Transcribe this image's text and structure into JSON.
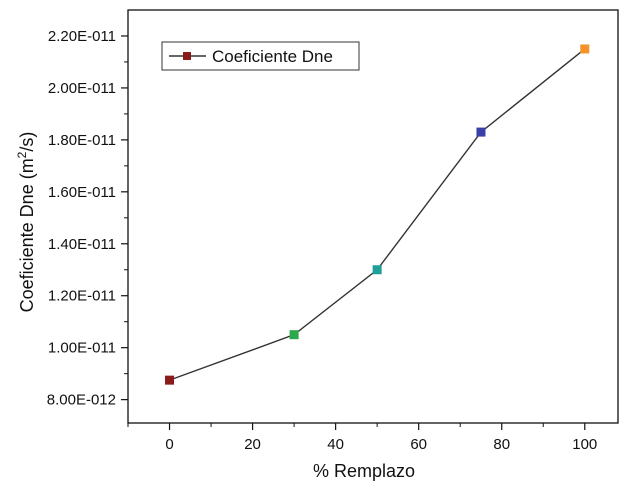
{
  "chart_data": {
    "type": "line",
    "xlabel": "% Remplazo",
    "ylabel_prefix": "Coeficiente Dne (m",
    "ylabel_sup": "2",
    "ylabel_suffix": "/s)",
    "xlim": [
      -10,
      108
    ],
    "ylim": [
      7.1e-12,
      2.3e-11
    ],
    "x_ticks": [
      0,
      20,
      40,
      60,
      80,
      100
    ],
    "x_tick_labels": [
      "0",
      "20",
      "40",
      "60",
      "80",
      "100"
    ],
    "y_ticks": [
      8e-12,
      1e-11,
      1.2e-11,
      1.4e-11,
      1.6e-11,
      1.8e-11,
      2e-11,
      2.2e-11
    ],
    "y_tick_labels": [
      "8.00E-012",
      "1.00E-011",
      "1.20E-011",
      "1.40E-011",
      "1.60E-011",
      "1.80E-011",
      "2.00E-011",
      "2.20E-011"
    ],
    "grid": false,
    "legend_position": "top-left",
    "series": [
      {
        "name": "Coeficiente Dne",
        "legend_color": "#8b1a1a",
        "line_color": "#333333",
        "x": [
          0,
          30,
          50,
          75,
          100
        ],
        "y": [
          8.75e-12,
          1.05e-11,
          1.3e-11,
          1.83e-11,
          2.15e-11
        ],
        "point_colors": [
          "#8b1a1a",
          "#2aa84a",
          "#1f9e9a",
          "#3a3fa8",
          "#f5922a"
        ]
      }
    ]
  }
}
